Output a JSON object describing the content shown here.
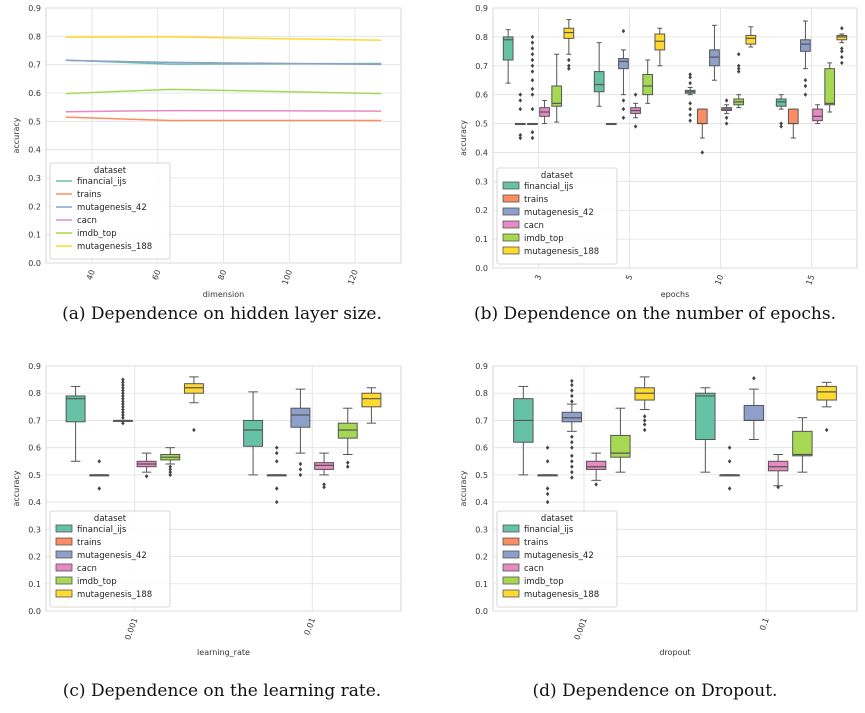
{
  "palette": {
    "financial_ijs": "#66c2a5",
    "trains": "#fc8d62",
    "mutagenesis_42": "#8da0cb",
    "cacn": "#e78ac3",
    "imdb_top": "#a6d854",
    "mutagenesis_188": "#ffd92f",
    "grid": "#e0e0e0",
    "outlier": "#444444"
  },
  "chart_data": [
    {
      "id": "a",
      "type": "line",
      "caption": "(a) Dependence on hidden layer size.",
      "xlabel": "dimension",
      "ylabel": "accuracy",
      "xlim": [
        26,
        134
      ],
      "ylim": [
        0,
        0.9
      ],
      "xticks": [
        40,
        60,
        80,
        100,
        120
      ],
      "yticks": [
        0.0,
        0.1,
        0.2,
        0.3,
        0.4,
        0.5,
        0.6,
        0.7,
        0.8,
        0.9
      ],
      "grid": true,
      "legend": {
        "title": "dataset",
        "placement": "lower-left"
      },
      "x": [
        32,
        64,
        128
      ],
      "series": [
        {
          "name": "financial_ijs",
          "values": [
            0.716,
            0.702,
            0.704
          ]
        },
        {
          "name": "trains",
          "values": [
            0.515,
            0.503,
            0.503
          ]
        },
        {
          "name": "mutagenesis_42",
          "values": [
            0.715,
            0.708,
            0.701
          ]
        },
        {
          "name": "cacn",
          "values": [
            0.534,
            0.538,
            0.536
          ]
        },
        {
          "name": "imdb_top",
          "values": [
            0.598,
            0.613,
            0.598
          ]
        },
        {
          "name": "mutagenesis_188",
          "values": [
            0.797,
            0.798,
            0.786
          ]
        }
      ]
    },
    {
      "id": "b",
      "type": "box",
      "caption": "(b) Dependence on the number of epochs.",
      "xlabel": "epochs",
      "ylabel": "accuracy",
      "ylim": [
        0,
        0.9
      ],
      "yticks": [
        0.0,
        0.1,
        0.2,
        0.3,
        0.4,
        0.5,
        0.6,
        0.7,
        0.8,
        0.9
      ],
      "grid": true,
      "legend": {
        "title": "dataset",
        "placement": "lower-left"
      },
      "categories": [
        "3",
        "5",
        "10",
        "15"
      ],
      "boxes": [
        [
          {
            "name": "financial_ijs",
            "whislo": 0.64,
            "q1": 0.72,
            "med": 0.79,
            "q3": 0.8,
            "whishi": 0.825,
            "fliers": []
          },
          {
            "name": "trains",
            "whislo": 0.5,
            "q1": 0.5,
            "med": 0.5,
            "q3": 0.5,
            "whishi": 0.5,
            "fliers": [
              0.45,
              0.46,
              0.55,
              0.58,
              0.6
            ]
          },
          {
            "name": "mutagenesis_42",
            "whislo": 0.5,
            "q1": 0.5,
            "med": 0.5,
            "q3": 0.5,
            "whishi": 0.5,
            "fliers": [
              0.45,
              0.47,
              0.55,
              0.6,
              0.62,
              0.65,
              0.68,
              0.7,
              0.72,
              0.74,
              0.76,
              0.78,
              0.8
            ]
          },
          {
            "name": "cacn",
            "whislo": 0.5,
            "q1": 0.525,
            "med": 0.54,
            "q3": 0.555,
            "whishi": 0.58,
            "fliers": []
          },
          {
            "name": "imdb_top",
            "whislo": 0.505,
            "q1": 0.56,
            "med": 0.57,
            "q3": 0.63,
            "whishi": 0.74,
            "fliers": []
          },
          {
            "name": "mutagenesis_188",
            "whislo": 0.74,
            "q1": 0.795,
            "med": 0.815,
            "q3": 0.83,
            "whishi": 0.86,
            "fliers": [
              0.69,
              0.7,
              0.72
            ]
          }
        ],
        [
          {
            "name": "financial_ijs",
            "whislo": 0.56,
            "q1": 0.61,
            "med": 0.635,
            "q3": 0.68,
            "whishi": 0.78,
            "fliers": []
          },
          {
            "name": "trains",
            "whislo": 0.5,
            "q1": 0.5,
            "med": 0.5,
            "q3": 0.5,
            "whishi": 0.5,
            "fliers": []
          },
          {
            "name": "mutagenesis_42",
            "whislo": 0.6,
            "q1": 0.69,
            "med": 0.715,
            "q3": 0.725,
            "whishi": 0.755,
            "fliers": [
              0.52,
              0.55,
              0.58,
              0.82
            ]
          },
          {
            "name": "cacn",
            "whislo": 0.52,
            "q1": 0.535,
            "med": 0.545,
            "q3": 0.555,
            "whishi": 0.57,
            "fliers": [
              0.49,
              0.6
            ]
          },
          {
            "name": "imdb_top",
            "whislo": 0.57,
            "q1": 0.6,
            "med": 0.63,
            "q3": 0.67,
            "whishi": 0.72,
            "fliers": []
          },
          {
            "name": "mutagenesis_188",
            "whislo": 0.7,
            "q1": 0.755,
            "med": 0.785,
            "q3": 0.81,
            "whishi": 0.83,
            "fliers": []
          }
        ],
        [
          {
            "name": "financial_ijs",
            "whislo": 0.6,
            "q1": 0.605,
            "med": 0.61,
            "q3": 0.615,
            "whishi": 0.625,
            "fliers": [
              0.51,
              0.53,
              0.55,
              0.57,
              0.64,
              0.66,
              0.67
            ]
          },
          {
            "name": "trains",
            "whislo": 0.45,
            "q1": 0.5,
            "med": 0.5,
            "q3": 0.55,
            "whishi": 0.55,
            "fliers": [
              0.4
            ]
          },
          {
            "name": "mutagenesis_42",
            "whislo": 0.65,
            "q1": 0.7,
            "med": 0.73,
            "q3": 0.755,
            "whishi": 0.84,
            "fliers": []
          },
          {
            "name": "cacn",
            "whislo": 0.535,
            "q1": 0.545,
            "med": 0.55,
            "q3": 0.555,
            "whishi": 0.565,
            "fliers": [
              0.5,
              0.52,
              0.58
            ]
          },
          {
            "name": "imdb_top",
            "whislo": 0.555,
            "q1": 0.565,
            "med": 0.575,
            "q3": 0.585,
            "whishi": 0.6,
            "fliers": [
              0.68,
              0.69,
              0.7,
              0.74
            ]
          },
          {
            "name": "mutagenesis_188",
            "whislo": 0.765,
            "q1": 0.775,
            "med": 0.795,
            "q3": 0.805,
            "whishi": 0.835,
            "fliers": []
          }
        ],
        [
          {
            "name": "financial_ijs",
            "whislo": 0.55,
            "q1": 0.56,
            "med": 0.575,
            "q3": 0.585,
            "whishi": 0.6,
            "fliers": [
              0.49,
              0.5
            ]
          },
          {
            "name": "trains",
            "whislo": 0.45,
            "q1": 0.5,
            "med": 0.5,
            "q3": 0.55,
            "whishi": 0.55,
            "fliers": []
          },
          {
            "name": "mutagenesis_42",
            "whislo": 0.69,
            "q1": 0.75,
            "med": 0.775,
            "q3": 0.79,
            "whishi": 0.855,
            "fliers": [
              0.6,
              0.63,
              0.65
            ]
          },
          {
            "name": "cacn",
            "whislo": 0.5,
            "q1": 0.51,
            "med": 0.525,
            "q3": 0.55,
            "whishi": 0.565,
            "fliers": []
          },
          {
            "name": "imdb_top",
            "whislo": 0.54,
            "q1": 0.565,
            "med": 0.57,
            "q3": 0.69,
            "whishi": 0.71,
            "fliers": []
          },
          {
            "name": "mutagenesis_188",
            "whislo": 0.78,
            "q1": 0.79,
            "med": 0.8,
            "q3": 0.805,
            "whishi": 0.81,
            "fliers": [
              0.71,
              0.73,
              0.75,
              0.76,
              0.83
            ]
          }
        ]
      ]
    },
    {
      "id": "c",
      "type": "box",
      "caption": "(c) Dependence on the learning rate.",
      "xlabel": "learning_rate",
      "ylabel": "accuracy",
      "ylim": [
        0,
        0.9
      ],
      "yticks": [
        0.0,
        0.1,
        0.2,
        0.3,
        0.4,
        0.5,
        0.6,
        0.7,
        0.8,
        0.9
      ],
      "grid": true,
      "legend": {
        "title": "dataset",
        "placement": "lower-left"
      },
      "categories": [
        "0.001",
        "0.01"
      ],
      "boxes": [
        [
          {
            "name": "financial_ijs",
            "whislo": 0.55,
            "q1": 0.695,
            "med": 0.78,
            "q3": 0.79,
            "whishi": 0.825,
            "fliers": []
          },
          {
            "name": "trains",
            "whislo": 0.5,
            "q1": 0.5,
            "med": 0.5,
            "q3": 0.5,
            "whishi": 0.5,
            "fliers": [
              0.45,
              0.55
            ]
          },
          {
            "name": "mutagenesis_42",
            "whislo": 0.7,
            "q1": 0.7,
            "med": 0.7,
            "q3": 0.7,
            "whishi": 0.7,
            "fliers": [
              0.69,
              0.71,
              0.72,
              0.73,
              0.74,
              0.75,
              0.76,
              0.77,
              0.78,
              0.79,
              0.8,
              0.81,
              0.82,
              0.83,
              0.84,
              0.85
            ]
          },
          {
            "name": "cacn",
            "whislo": 0.51,
            "q1": 0.53,
            "med": 0.54,
            "q3": 0.55,
            "whishi": 0.58,
            "fliers": [
              0.495
            ]
          },
          {
            "name": "imdb_top",
            "whislo": 0.54,
            "q1": 0.555,
            "med": 0.565,
            "q3": 0.575,
            "whishi": 0.6,
            "fliers": [
              0.5,
              0.51,
              0.52,
              0.53
            ]
          },
          {
            "name": "mutagenesis_188",
            "whislo": 0.765,
            "q1": 0.8,
            "med": 0.82,
            "q3": 0.835,
            "whishi": 0.86,
            "fliers": [
              0.665
            ]
          }
        ],
        [
          {
            "name": "financial_ijs",
            "whislo": 0.5,
            "q1": 0.605,
            "med": 0.665,
            "q3": 0.7,
            "whishi": 0.805,
            "fliers": []
          },
          {
            "name": "trains",
            "whislo": 0.5,
            "q1": 0.5,
            "med": 0.5,
            "q3": 0.5,
            "whishi": 0.5,
            "fliers": [
              0.4,
              0.45,
              0.55,
              0.58,
              0.6
            ]
          },
          {
            "name": "mutagenesis_42",
            "whislo": 0.58,
            "q1": 0.675,
            "med": 0.72,
            "q3": 0.745,
            "whishi": 0.815,
            "fliers": [
              0.5,
              0.52,
              0.54
            ]
          },
          {
            "name": "cacn",
            "whislo": 0.5,
            "q1": 0.52,
            "med": 0.535,
            "q3": 0.545,
            "whishi": 0.58,
            "fliers": [
              0.455,
              0.465
            ]
          },
          {
            "name": "imdb_top",
            "whislo": 0.575,
            "q1": 0.635,
            "med": 0.665,
            "q3": 0.69,
            "whishi": 0.745,
            "fliers": [
              0.53,
              0.545
            ]
          },
          {
            "name": "mutagenesis_188",
            "whislo": 0.69,
            "q1": 0.75,
            "med": 0.78,
            "q3": 0.8,
            "whishi": 0.82,
            "fliers": []
          }
        ]
      ]
    },
    {
      "id": "d",
      "type": "box",
      "caption": "(d) Dependence on Dropout.",
      "xlabel": "dropout",
      "ylabel": "accuracy",
      "ylim": [
        0,
        0.9
      ],
      "yticks": [
        0.0,
        0.1,
        0.2,
        0.3,
        0.4,
        0.5,
        0.6,
        0.7,
        0.8,
        0.9
      ],
      "grid": true,
      "legend": {
        "title": "dataset",
        "placement": "lower-left"
      },
      "categories": [
        "0.001",
        "0.1"
      ],
      "boxes": [
        [
          {
            "name": "financial_ijs",
            "whislo": 0.5,
            "q1": 0.62,
            "med": 0.7,
            "q3": 0.78,
            "whishi": 0.825,
            "fliers": []
          },
          {
            "name": "trains",
            "whislo": 0.5,
            "q1": 0.5,
            "med": 0.5,
            "q3": 0.5,
            "whishi": 0.5,
            "fliers": [
              0.4,
              0.43,
              0.45,
              0.55,
              0.6
            ]
          },
          {
            "name": "mutagenesis_42",
            "whislo": 0.66,
            "q1": 0.695,
            "med": 0.71,
            "q3": 0.73,
            "whishi": 0.76,
            "fliers": [
              0.49,
              0.51,
              0.53,
              0.55,
              0.57,
              0.6,
              0.62,
              0.64,
              0.77,
              0.79,
              0.81,
              0.83,
              0.845
            ]
          },
          {
            "name": "cacn",
            "whislo": 0.48,
            "q1": 0.52,
            "med": 0.53,
            "q3": 0.55,
            "whishi": 0.58,
            "fliers": [
              0.465
            ]
          },
          {
            "name": "imdb_top",
            "whislo": 0.51,
            "q1": 0.565,
            "med": 0.58,
            "q3": 0.645,
            "whishi": 0.745,
            "fliers": []
          },
          {
            "name": "mutagenesis_188",
            "whislo": 0.74,
            "q1": 0.775,
            "med": 0.8,
            "q3": 0.82,
            "whishi": 0.86,
            "fliers": [
              0.665,
              0.685,
              0.7,
              0.715
            ]
          }
        ],
        [
          {
            "name": "financial_ijs",
            "whislo": 0.51,
            "q1": 0.63,
            "med": 0.79,
            "q3": 0.8,
            "whishi": 0.82,
            "fliers": []
          },
          {
            "name": "trains",
            "whislo": 0.5,
            "q1": 0.5,
            "med": 0.5,
            "q3": 0.5,
            "whishi": 0.5,
            "fliers": [
              0.45,
              0.55,
              0.6
            ]
          },
          {
            "name": "mutagenesis_42",
            "whislo": 0.63,
            "q1": 0.7,
            "med": 0.7,
            "q3": 0.755,
            "whishi": 0.815,
            "fliers": [
              0.855
            ]
          },
          {
            "name": "cacn",
            "whislo": 0.46,
            "q1": 0.515,
            "med": 0.53,
            "q3": 0.55,
            "whishi": 0.575,
            "fliers": [
              0.455
            ]
          },
          {
            "name": "imdb_top",
            "whislo": 0.51,
            "q1": 0.57,
            "med": 0.575,
            "q3": 0.66,
            "whishi": 0.71,
            "fliers": []
          },
          {
            "name": "mutagenesis_188",
            "whislo": 0.75,
            "q1": 0.775,
            "med": 0.805,
            "q3": 0.825,
            "whishi": 0.84,
            "fliers": [
              0.665
            ]
          }
        ]
      ]
    }
  ]
}
